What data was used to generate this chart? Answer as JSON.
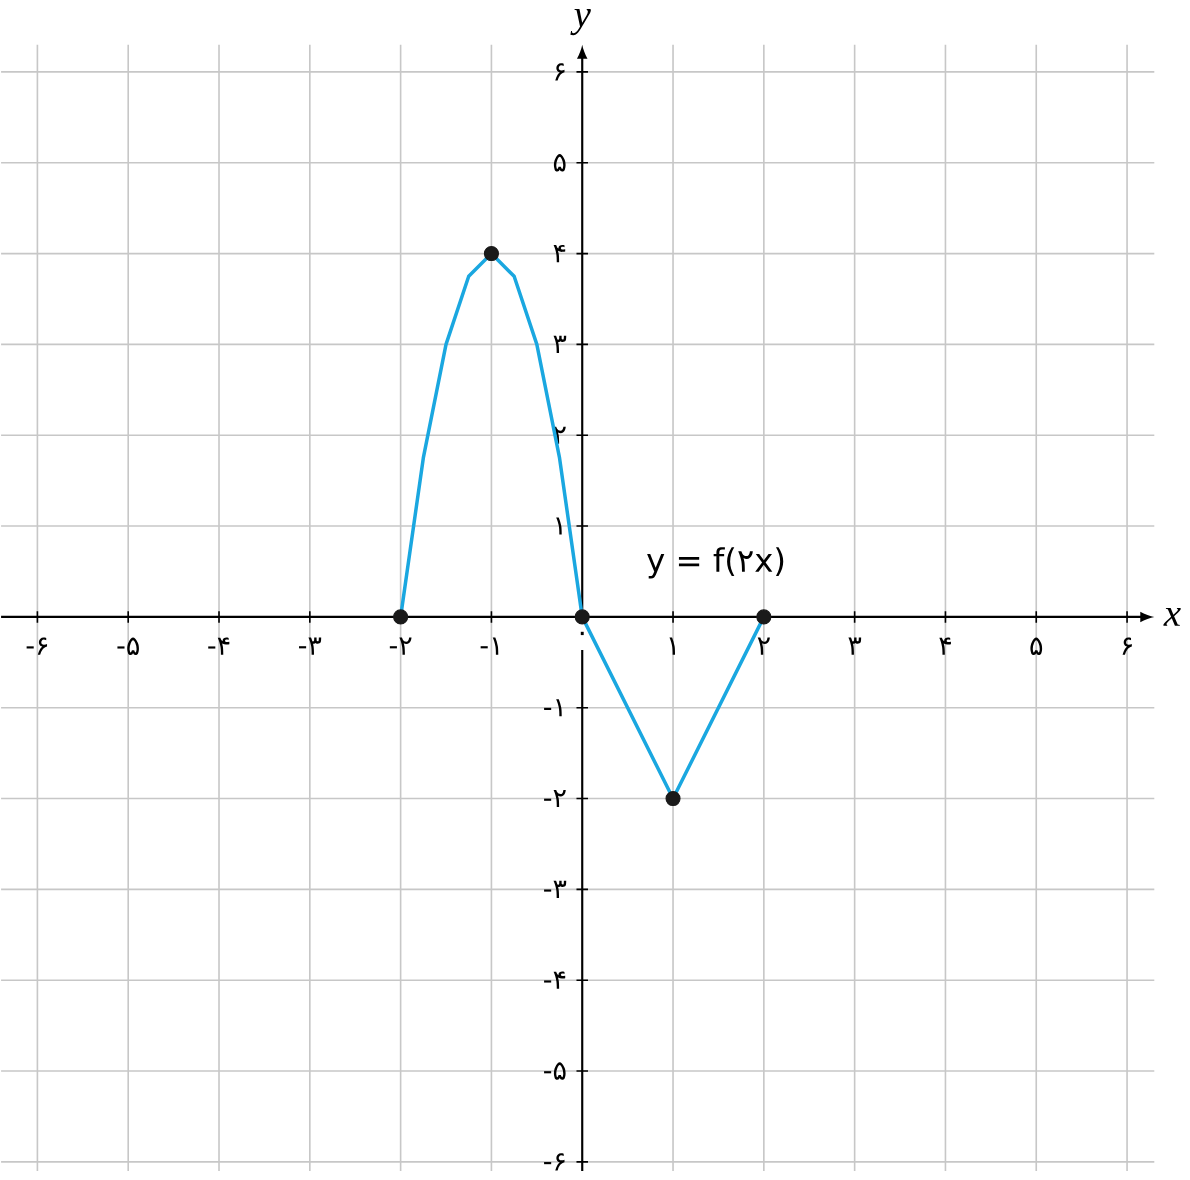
{
  "chart_data": {
    "type": "line",
    "xlabel": "x",
    "ylabel": "y",
    "xlim": [
      -6.4,
      6.3
    ],
    "ylim": [
      -6.1,
      6.3
    ],
    "xticks": [
      {
        "value": -6,
        "label": "-۶"
      },
      {
        "value": -5,
        "label": "-۵"
      },
      {
        "value": -4,
        "label": "-۴"
      },
      {
        "value": -3,
        "label": "-۳"
      },
      {
        "value": -2,
        "label": "-۲"
      },
      {
        "value": -1,
        "label": "-۱"
      },
      {
        "value": 0,
        "label": "۰"
      },
      {
        "value": 1,
        "label": "۱"
      },
      {
        "value": 2,
        "label": "۲"
      },
      {
        "value": 3,
        "label": "۳"
      },
      {
        "value": 4,
        "label": "۴"
      },
      {
        "value": 5,
        "label": "۵"
      },
      {
        "value": 6,
        "label": "۶"
      }
    ],
    "yticks": [
      {
        "value": -6,
        "label": "-۶"
      },
      {
        "value": -5,
        "label": "-۵"
      },
      {
        "value": -4,
        "label": "-۴"
      },
      {
        "value": -3,
        "label": "-۳"
      },
      {
        "value": -2,
        "label": "-۲"
      },
      {
        "value": -1,
        "label": "-۱"
      },
      {
        "value": 1,
        "label": "۱"
      },
      {
        "value": 2,
        "label": "۲"
      },
      {
        "value": 3,
        "label": "۳"
      },
      {
        "value": 4,
        "label": "۴"
      },
      {
        "value": 5,
        "label": "۵"
      },
      {
        "value": 6,
        "label": "۶"
      }
    ],
    "grid": true,
    "series": [
      {
        "type": "line",
        "color": "#1aa7e0",
        "marker": "none",
        "x": [
          -2,
          -1.75,
          -1.5,
          -1.25,
          -1,
          -0.75,
          -0.5,
          -0.25,
          0,
          1,
          2
        ],
        "values": [
          0,
          1.75,
          3,
          3.75,
          4,
          3.75,
          3,
          1.75,
          0,
          -2,
          0
        ]
      },
      {
        "type": "scatter",
        "color": "#1a1a1a",
        "marker": "circle",
        "x": [
          -2,
          -1,
          0,
          1,
          2
        ],
        "values": [
          0,
          4,
          0,
          -2,
          0
        ]
      }
    ],
    "annotations": [
      "y = f(۲x)"
    ]
  }
}
